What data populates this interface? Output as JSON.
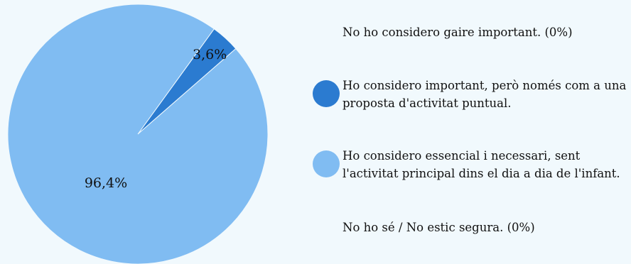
{
  "chart_data": {
    "type": "pie",
    "slices": [
      {
        "label": "No ho considero gaire important. (0%)",
        "value": 0,
        "value_label": "",
        "color": ""
      },
      {
        "label": "Ho considero important, però només com a una proposta d'activitat puntual.",
        "value": 3.6,
        "value_label": "3,6%",
        "color": "#2b7bd0"
      },
      {
        "label": "Ho considero essencial i necessari, sent l'activitat principal dins el dia a dia de l'infant.",
        "value": 96.4,
        "value_label": "96,4%",
        "color": "#80bcf2"
      },
      {
        "label": "No ho sé / No estic segura. (0%)",
        "value": 0,
        "value_label": "",
        "color": ""
      }
    ]
  }
}
